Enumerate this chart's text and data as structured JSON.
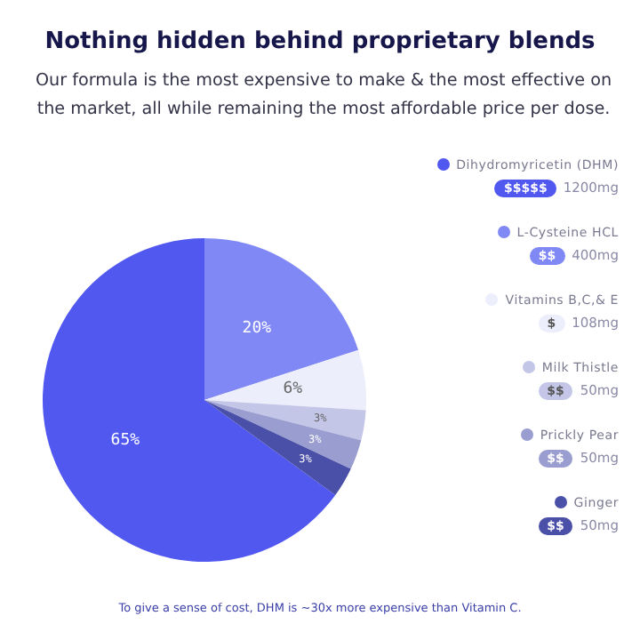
{
  "chart_data": {
    "type": "pie",
    "title": "Nothing hidden behind proprietary blends",
    "subtitle": "Our formula is the most expensive to make & the most effective on the market, all while remaining the most affordable price per dose.",
    "categories": [
      "Dihydromyricetin (DHM)",
      "L-Cysteine HCL",
      "Vitamins B,C,& E",
      "Milk Thistle",
      "Prickly Pear",
      "Ginger"
    ],
    "values": [
      65,
      20,
      6,
      3,
      3,
      3
    ],
    "colors": [
      "#5158f0",
      "#8088f5",
      "#eceefb",
      "#c4c6e8",
      "#9a9dd0",
      "#4a4fa8"
    ],
    "value_labels": [
      "65%",
      "20%",
      "6%",
      "3%",
      "3%",
      "3%"
    ],
    "legend": "right",
    "annotations": [
      {
        "text": "$$$$$",
        "x": "Dihydromyricetin (DHM)"
      },
      {
        "text": "1200mg",
        "x": "Dihydromyricetin (DHM)"
      },
      {
        "text": "$$",
        "x": "L-Cysteine HCL"
      },
      {
        "text": "400mg",
        "x": "L-Cysteine HCL"
      },
      {
        "text": "$",
        "x": "Vitamins B,C,& E"
      },
      {
        "text": "108mg",
        "x": "Vitamins B,C,& E"
      },
      {
        "text": "$$",
        "x": "Milk Thistle"
      },
      {
        "text": "50mg",
        "x": "Milk Thistle"
      },
      {
        "text": "$$",
        "x": "Prickly Pear"
      },
      {
        "text": "50mg",
        "x": "Prickly Pear"
      },
      {
        "text": "$$",
        "x": "Ginger"
      },
      {
        "text": "50mg",
        "x": "Ginger"
      },
      "To give a sense of cost, DHM is ~30x more expensive than Vitamin C."
    ]
  }
}
